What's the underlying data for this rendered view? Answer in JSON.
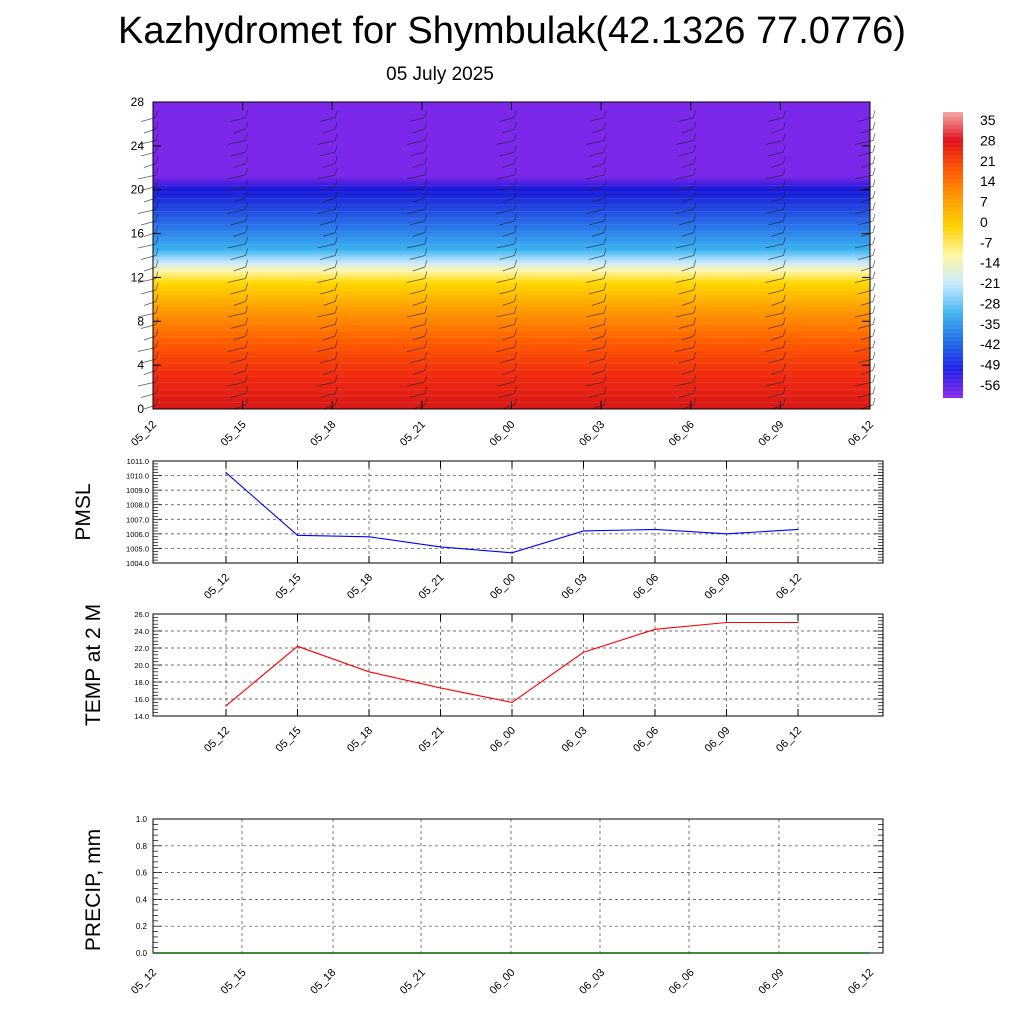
{
  "header": {
    "title": "Kazhydromet for Shymbulak(42.1326 77.0776)",
    "subtitle": "05 July 2025"
  },
  "colorbar": {
    "labels": [
      "35",
      "28",
      "21",
      "14",
      "7",
      "0",
      "-7",
      "-14",
      "-21",
      "-28",
      "-35",
      "-42",
      "-49",
      "-56"
    ],
    "colors": [
      "#f4a6a6",
      "#e0101a",
      "#ff5500",
      "#ff9a00",
      "#ffd000",
      "#fff7a0",
      "#c8ecff",
      "#46b4f0",
      "#1f6fe8",
      "#2020e8",
      "#8a2ae8"
    ]
  },
  "chart_data": [
    {
      "type": "heatmap",
      "name": "cross-section",
      "x_ticks": [
        "05_12",
        "05_15",
        "05_18",
        "05_21",
        "06_00",
        "06_03",
        "06_06",
        "06_09",
        "06_12"
      ],
      "y_ticks": [
        "0",
        "4",
        "8",
        "12",
        "16",
        "20",
        "24",
        "28"
      ],
      "ylim": [
        0,
        28
      ],
      "bands": [
        {
          "y": 0,
          "value": 28,
          "color": "#d81818"
        },
        {
          "y": 3,
          "value": 21,
          "color": "#f02a10"
        },
        {
          "y": 6,
          "value": 14,
          "color": "#ff5a00"
        },
        {
          "y": 9,
          "value": 7,
          "color": "#ff9a00"
        },
        {
          "y": 11.5,
          "value": 0,
          "color": "#ffd800"
        },
        {
          "y": 12.6,
          "value": -7,
          "color": "#fff7b0"
        },
        {
          "y": 13.4,
          "value": -14,
          "color": "#c6e8ff"
        },
        {
          "y": 14.5,
          "value": -21,
          "color": "#3cb4f0"
        },
        {
          "y": 16.5,
          "value": -28,
          "color": "#2a78ea"
        },
        {
          "y": 18.5,
          "value": -42,
          "color": "#2040e0"
        },
        {
          "y": 20,
          "value": -56,
          "color": "#1818d8"
        },
        {
          "y": 21.2,
          "value": -49,
          "color": "#7c28ea"
        },
        {
          "y": 28,
          "value": -49,
          "color": "#7c28ea"
        }
      ]
    },
    {
      "type": "line",
      "ylabel": "PMSL",
      "categories": [
        "05_12",
        "05_15",
        "05_18",
        "05_21",
        "06_00",
        "06_03",
        "06_06",
        "06_09",
        "06_12"
      ],
      "values": [
        1010.2,
        1005.9,
        1005.8,
        1005.1,
        1004.7,
        1006.2,
        1006.3,
        1006.0,
        1006.3
      ],
      "ylim": [
        1004.0,
        1011.0
      ],
      "y_ticks": [
        "1004.0",
        "1005.0",
        "1006.0",
        "1007.0",
        "1008.0",
        "1009.0",
        "1010.0",
        "1011.0"
      ],
      "color": "#0000ff",
      "grid": true
    },
    {
      "type": "line",
      "ylabel": "TEMP at 2 M",
      "categories": [
        "05_12",
        "05_15",
        "05_18",
        "05_21",
        "06_00",
        "06_03",
        "06_06",
        "06_09",
        "06_12"
      ],
      "values": [
        15.2,
        22.2,
        19.2,
        17.3,
        15.6,
        21.5,
        24.2,
        25.0,
        25.0
      ],
      "ylim": [
        14.0,
        26.0
      ],
      "y_ticks": [
        "14.0",
        "16.0",
        "18.0",
        "20.0",
        "22.0",
        "24.0",
        "26.0"
      ],
      "color": "#ff0000",
      "grid": true
    },
    {
      "type": "line",
      "ylabel": "PRECIP, mm",
      "categories": [
        "05_12",
        "05_15",
        "05_18",
        "05_21",
        "06_00",
        "06_03",
        "06_06",
        "06_09",
        "06_12"
      ],
      "values": [
        0,
        0,
        0,
        0,
        0,
        0,
        0,
        0,
        0
      ],
      "ylim": [
        0.0,
        1.0
      ],
      "y_ticks": [
        "0.0",
        "0.2",
        "0.4",
        "0.6",
        "0.8",
        "1.0"
      ],
      "color": "#006400",
      "grid": true
    }
  ]
}
